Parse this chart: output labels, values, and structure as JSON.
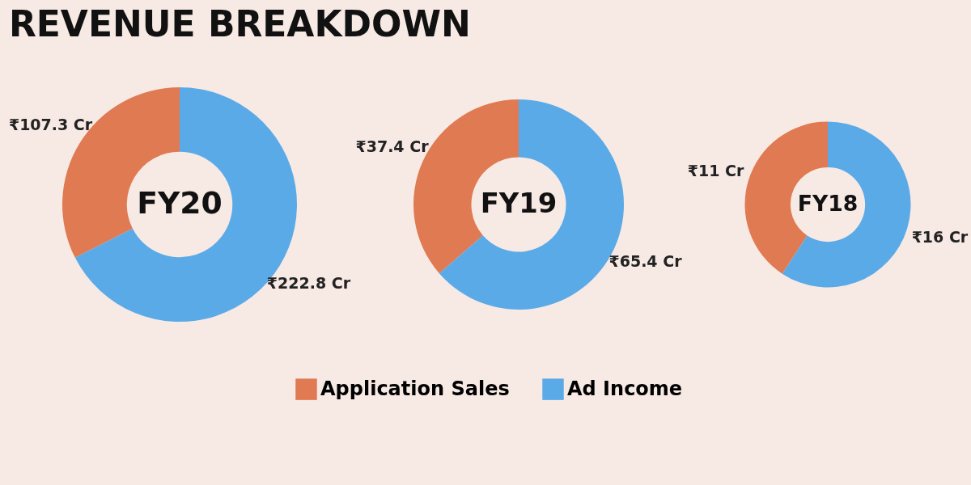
{
  "chart_data": {
    "type": "donut",
    "title": "REVENUE BREAKDOWN",
    "categories": [
      "Application Sales",
      "Ad Income"
    ],
    "colors": [
      "#e07a52",
      "#5aaae8"
    ],
    "legend": "bottom",
    "series": [
      {
        "name": "FY20",
        "values": [
          107.3,
          222.8
        ],
        "value_labels": [
          "₹107.3 Cr",
          "₹222.8 Cr"
        ]
      },
      {
        "name": "FY19",
        "values": [
          37.4,
          65.4
        ],
        "value_labels": [
          "₹37.4 Cr",
          "₹65.4 Cr"
        ]
      },
      {
        "name": "FY18",
        "values": [
          11,
          16
        ],
        "value_labels": [
          "₹11 Cr",
          "₹16 Cr"
        ]
      }
    ]
  }
}
